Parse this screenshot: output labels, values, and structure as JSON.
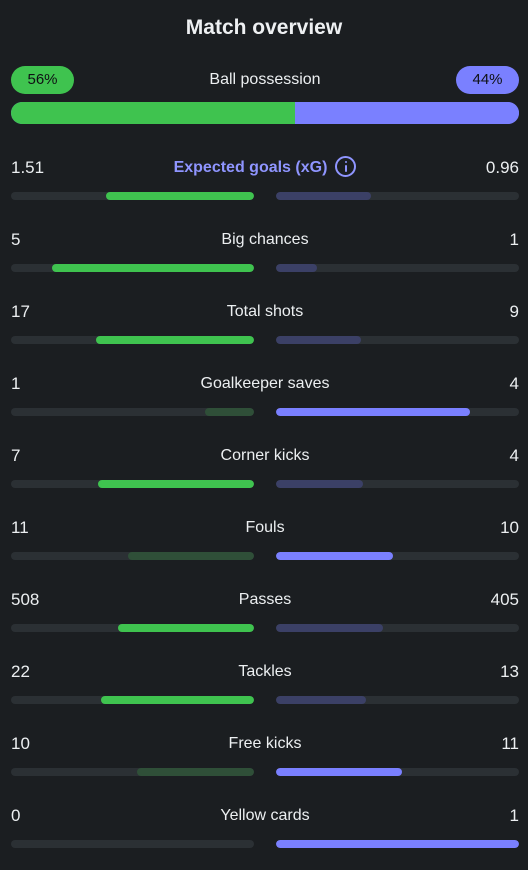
{
  "header": {
    "title": "Match overview"
  },
  "possession": {
    "label": "Ball possession",
    "home_label": "56%",
    "away_label": "44%",
    "home_percent": 56,
    "away_percent": 44
  },
  "colors": {
    "home_accent": "#3fc34f",
    "home_dim": "#2f4f38",
    "away_accent": "#7a80ff",
    "away_dim": "#3b4066",
    "track": "#2b3034",
    "background": "#1b1e21"
  },
  "stats": [
    {
      "label": "Expected goals (xG)",
      "home": "1.51",
      "away": "0.96",
      "home_fill": 0.61,
      "away_fill": 0.39,
      "home_wins": true,
      "icon": "info-icon"
    },
    {
      "label": "Big chances",
      "home": "5",
      "away": "1",
      "home_fill": 0.83,
      "away_fill": 0.17,
      "home_wins": true
    },
    {
      "label": "Total shots",
      "home": "17",
      "away": "9",
      "home_fill": 0.65,
      "away_fill": 0.35,
      "home_wins": true
    },
    {
      "label": "Goalkeeper saves",
      "home": "1",
      "away": "4",
      "home_fill": 0.2,
      "away_fill": 0.8,
      "home_wins": false
    },
    {
      "label": "Corner kicks",
      "home": "7",
      "away": "4",
      "home_fill": 0.64,
      "away_fill": 0.36,
      "home_wins": true
    },
    {
      "label": "Fouls",
      "home": "11",
      "away": "10",
      "home_fill": 0.52,
      "away_fill": 0.48,
      "home_wins": false
    },
    {
      "label": "Passes",
      "home": "508",
      "away": "405",
      "home_fill": 0.56,
      "away_fill": 0.44,
      "home_wins": true
    },
    {
      "label": "Tackles",
      "home": "22",
      "away": "13",
      "home_fill": 0.63,
      "away_fill": 0.37,
      "home_wins": true
    },
    {
      "label": "Free kicks",
      "home": "10",
      "away": "11",
      "home_fill": 0.48,
      "away_fill": 0.52,
      "home_wins": false
    },
    {
      "label": "Yellow cards",
      "home": "0",
      "away": "1",
      "home_fill": 0,
      "away_fill": 1,
      "home_wins": false
    }
  ]
}
